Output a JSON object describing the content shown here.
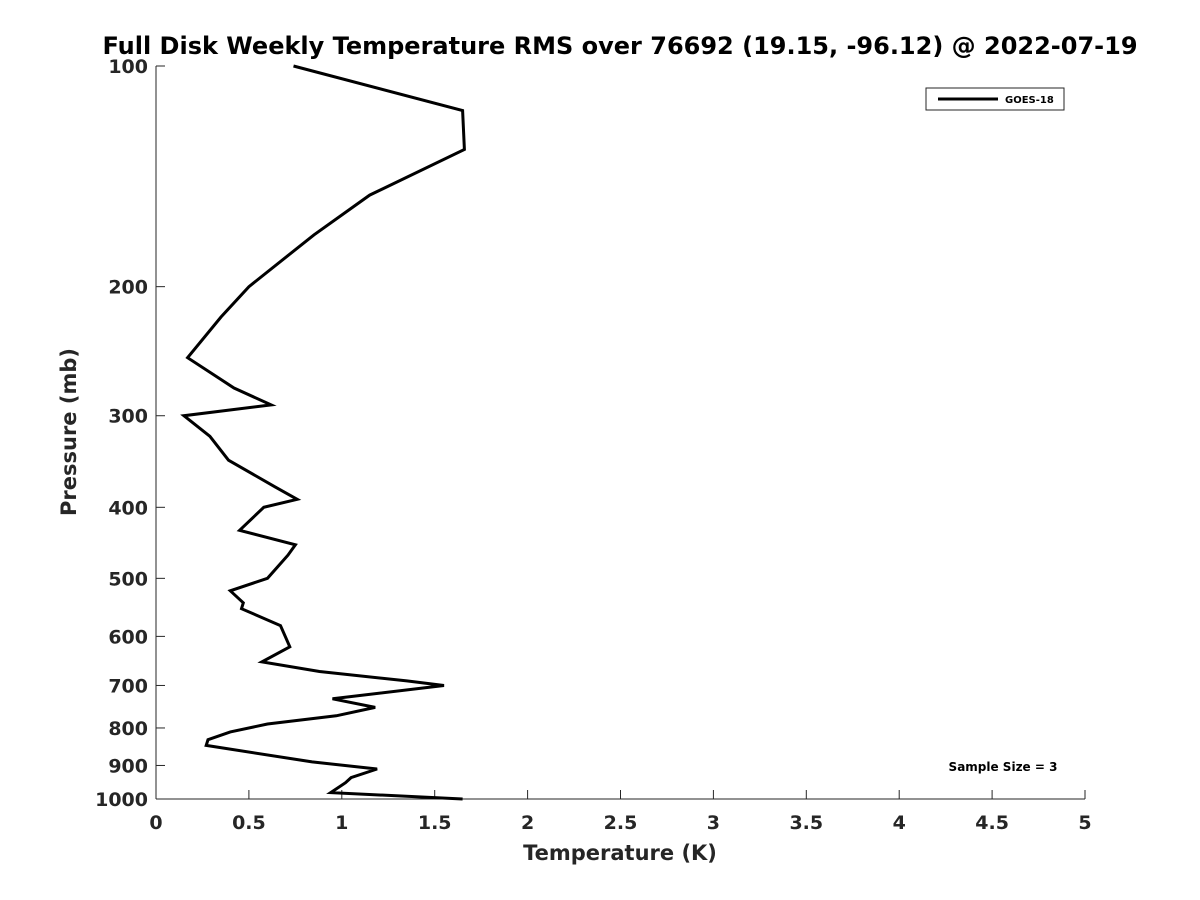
{
  "chart_data": {
    "type": "line",
    "title": "Full Disk Weekly Temperature RMS over 76692 (19.15, -96.12) @ 2022-07-19",
    "xlabel": "Temperature (K)",
    "ylabel": "Pressure (mb)",
    "xlim": [
      0,
      5
    ],
    "ylim": [
      100,
      1000
    ],
    "y_scale": "log",
    "y_reversed": true,
    "xticks": [
      0,
      0.5,
      1,
      1.5,
      2,
      2.5,
      3,
      3.5,
      4,
      4.5,
      5
    ],
    "xtick_labels": [
      "0",
      "0.5",
      "1",
      "1.5",
      "2",
      "2.5",
      "3",
      "3.5",
      "4",
      "4.5",
      "5"
    ],
    "yticks": [
      100,
      200,
      300,
      400,
      500,
      600,
      700,
      800,
      900,
      1000
    ],
    "ytick_labels": [
      "100",
      "200",
      "300",
      "400",
      "500",
      "600",
      "700",
      "800",
      "900",
      "1000"
    ],
    "grid": false,
    "legend_position": "top-right",
    "series": [
      {
        "name": "GOES-18",
        "color": "#000000",
        "x": [
          0.74,
          1.65,
          1.66,
          1.15,
          0.85,
          0.5,
          0.35,
          0.17,
          0.42,
          0.62,
          0.15,
          0.29,
          0.39,
          0.64,
          0.76,
          0.58,
          0.45,
          0.75,
          0.71,
          0.6,
          0.4,
          0.47,
          0.46,
          0.67,
          0.72,
          0.57,
          0.88,
          1.35,
          1.55,
          0.95,
          1.18,
          0.97,
          0.6,
          0.4,
          0.28,
          0.27,
          0.84,
          1.19,
          1.05,
          1.02,
          0.94,
          1.65
        ],
        "y": [
          100,
          115,
          130,
          150,
          170,
          200,
          220,
          250,
          275,
          290,
          300,
          320,
          345,
          375,
          390,
          400,
          430,
          450,
          465,
          500,
          520,
          540,
          550,
          580,
          620,
          650,
          670,
          690,
          700,
          730,
          750,
          770,
          790,
          810,
          830,
          845,
          890,
          910,
          935,
          950,
          980,
          1000
        ]
      }
    ],
    "annotations": [
      "Sample Size = 3"
    ]
  }
}
